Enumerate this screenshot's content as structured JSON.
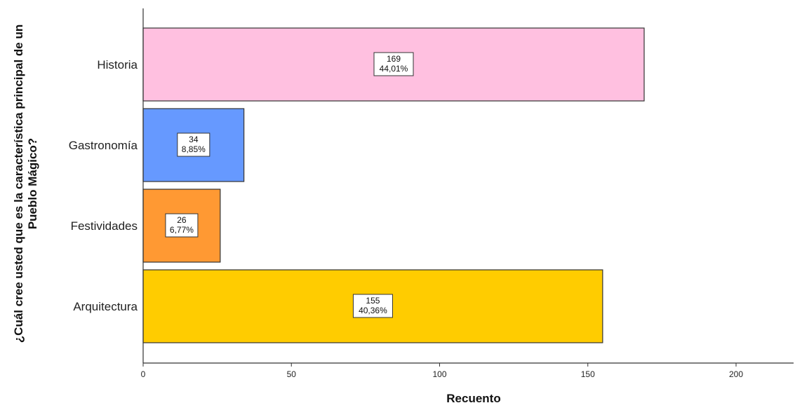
{
  "chart_data": {
    "type": "bar",
    "orientation": "horizontal",
    "categories": [
      "Historia",
      "Gastronomía",
      "Festividades",
      "Arquitectura"
    ],
    "values": [
      169,
      34,
      26,
      155
    ],
    "percent_labels": [
      "44,01%",
      "8,85%",
      "6,77%",
      "40,36%"
    ],
    "colors": [
      "#ffc0e0",
      "#6699ff",
      "#ff9933",
      "#ffcc00"
    ],
    "xlabel": "Recuento",
    "ylabel_line1": "¿Cuál cree usted que es la característica principal de un",
    "ylabel_line2": "Pueblo Mágico?",
    "xlim": [
      0,
      220
    ],
    "xticks": [
      0,
      50,
      100,
      150,
      200
    ],
    "grid": false
  }
}
